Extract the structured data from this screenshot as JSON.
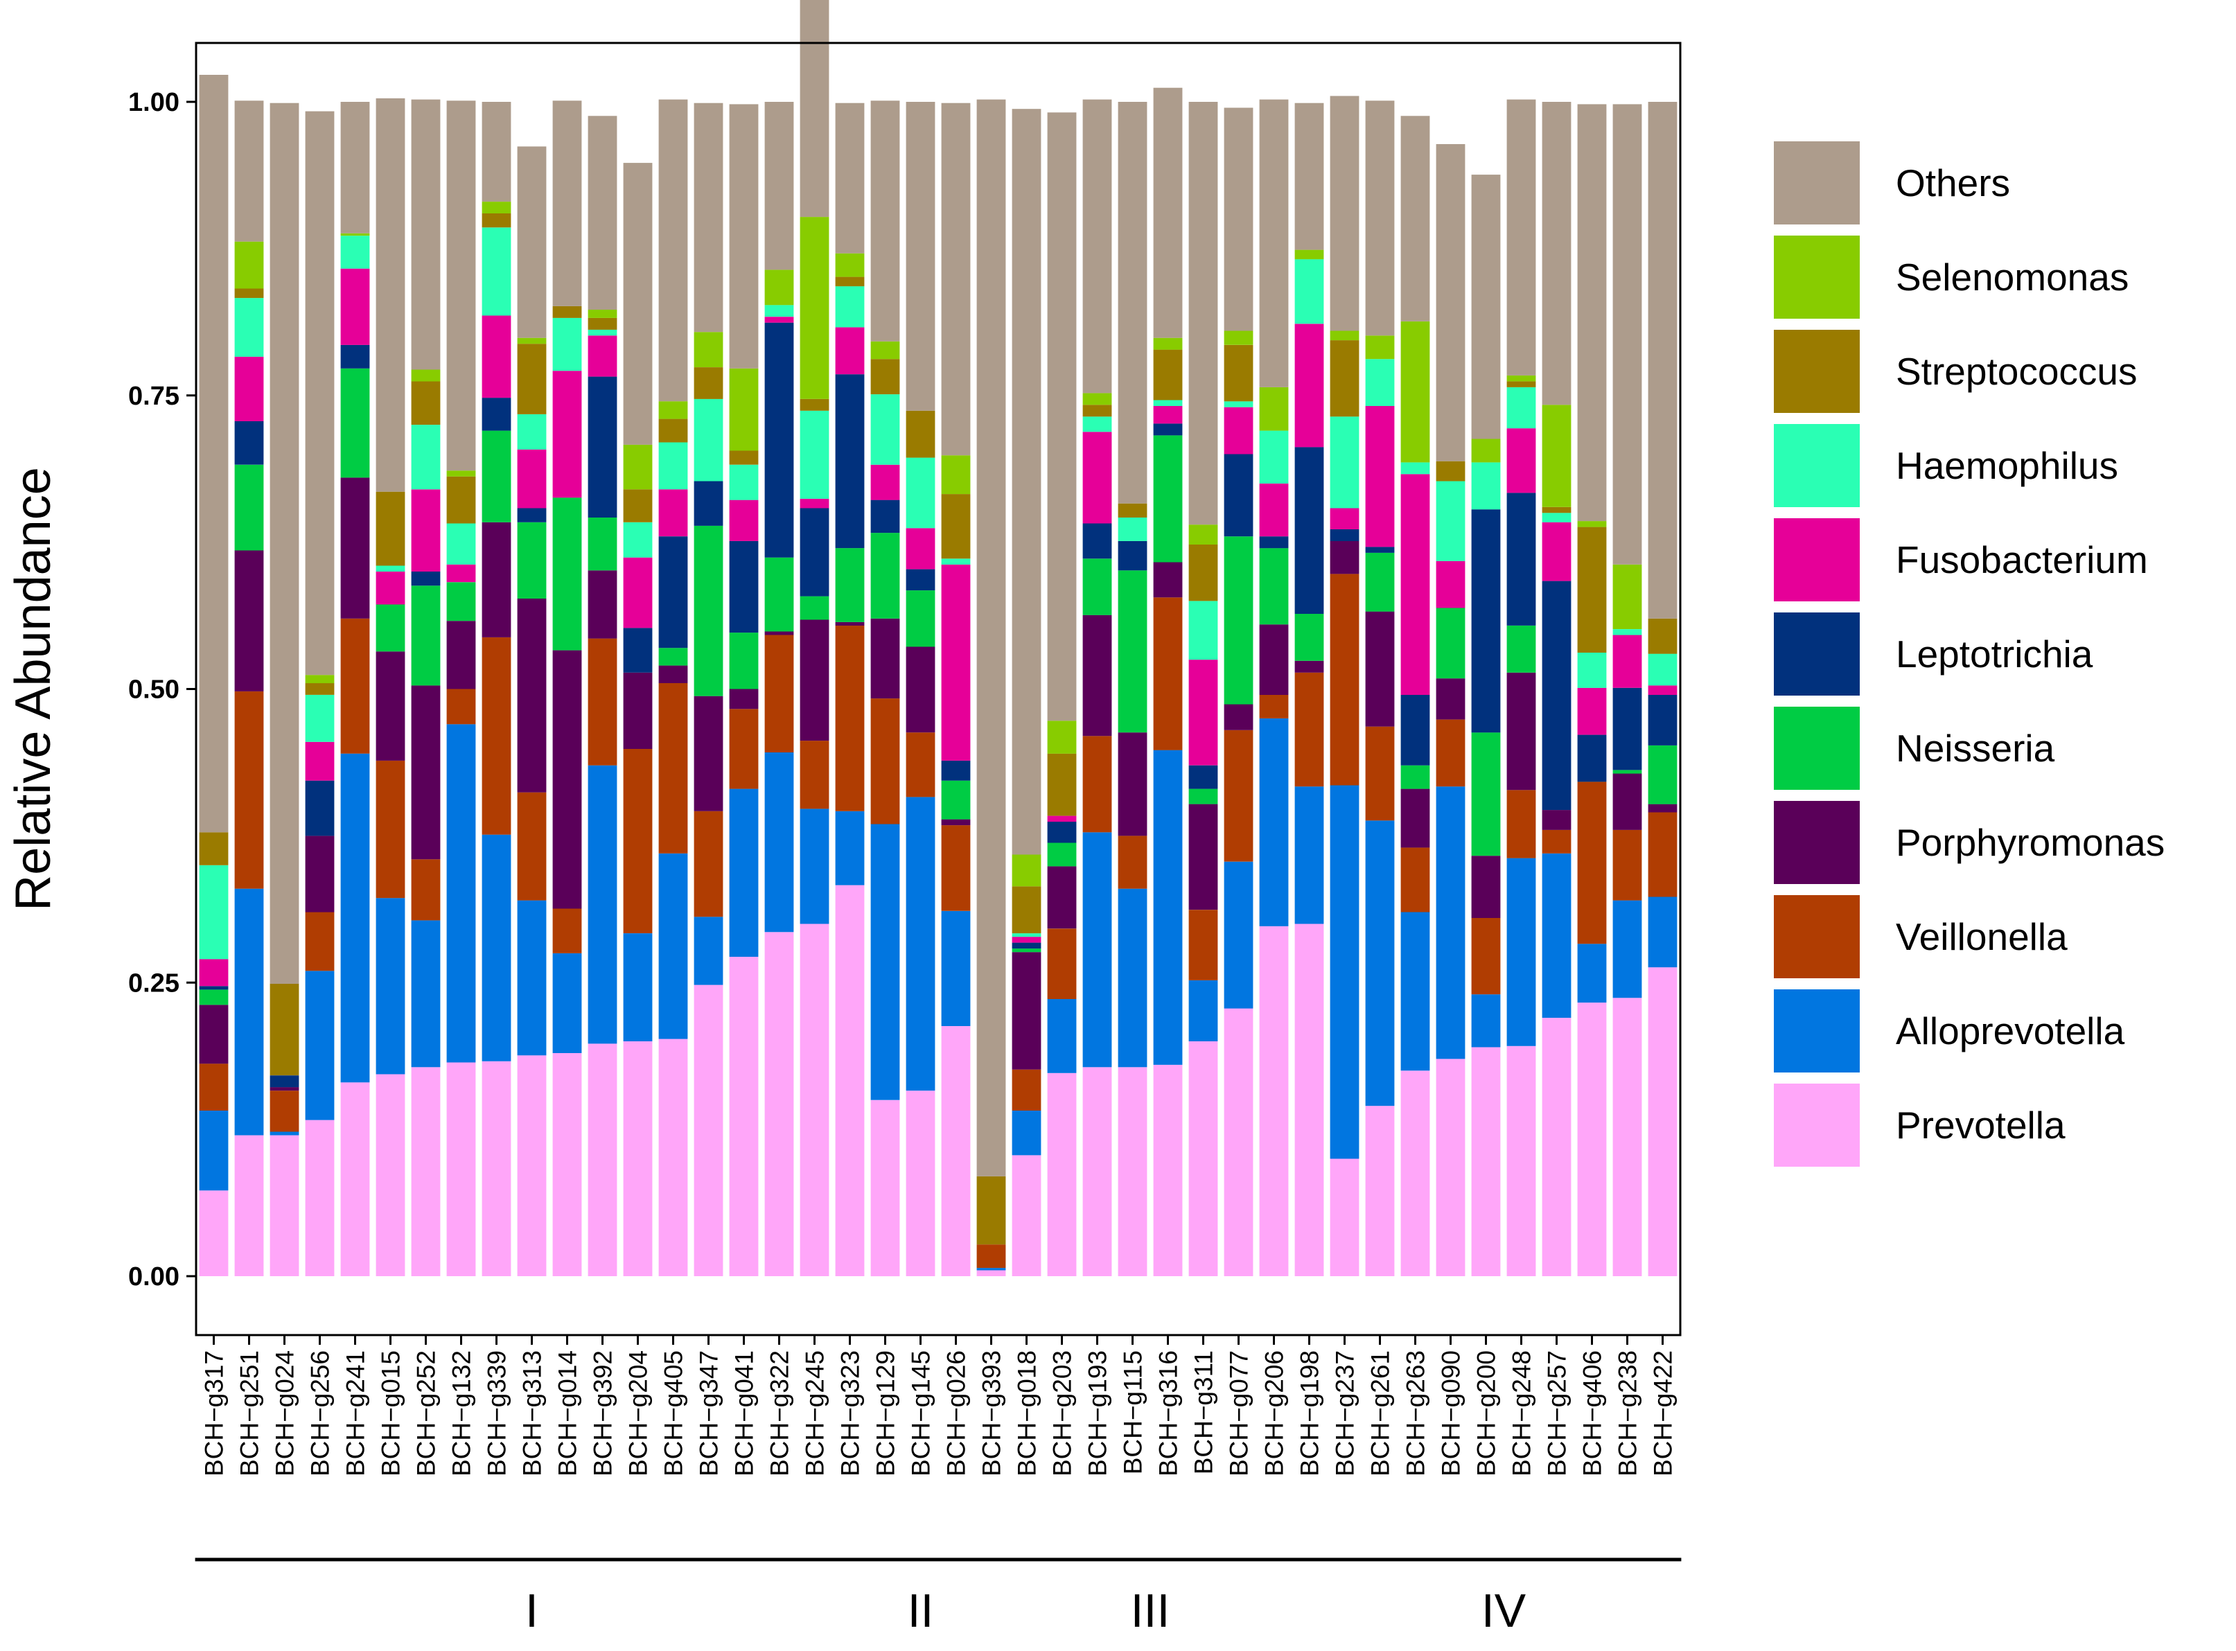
{
  "chart_data": {
    "type": "bar",
    "stacked": true,
    "ylabel": "Relative Abundance",
    "ylim": [
      0,
      1.05
    ],
    "yticks": [
      "0.00",
      "0.25",
      "0.50",
      "0.75",
      "1.00"
    ],
    "grid": false,
    "legend_position": "right",
    "categories": [
      "BCH−g317",
      "BCH−g251",
      "BCH−g024",
      "BCH−g256",
      "BCH−g241",
      "BCH−g015",
      "BCH−g252",
      "BCH−g132",
      "BCH−g339",
      "BCH−g313",
      "BCH−g014",
      "BCH−g392",
      "BCH−g204",
      "BCH−g405",
      "BCH−g347",
      "BCH−g041",
      "BCH−g322",
      "BCH−g245",
      "BCH−g323",
      "BCH−g129",
      "BCH−g145",
      "BCH−g026",
      "BCH−g393",
      "BCH−g018",
      "BCH−g203",
      "BCH−g193",
      "BCH−g115",
      "BCH−g316",
      "BCH−g311",
      "BCH−g077",
      "BCH−g206",
      "BCH−g198",
      "BCH−g237",
      "BCH−g261",
      "BCH−g263",
      "BCH−g090",
      "BCH−g200",
      "BCH−g248",
      "BCH−g257",
      "BCH−g406",
      "BCH−g238",
      "BCH−g422"
    ],
    "groups": [
      {
        "label": "I",
        "start": 0,
        "end": 18
      },
      {
        "label": "II",
        "start": 19,
        "end": 21
      },
      {
        "label": "III",
        "start": 22,
        "end": 31
      },
      {
        "label": "IV",
        "start": 32,
        "end": 41
      }
    ],
    "series": [
      {
        "name": "Prevotella",
        "color": "#FFA6F9",
        "values": [
          0.073,
          0.12,
          0.12,
          0.133,
          0.165,
          0.172,
          0.178,
          0.182,
          0.183,
          0.188,
          0.19,
          0.198,
          0.2,
          0.202,
          0.248,
          0.272,
          0.293,
          0.3,
          0.333,
          0.15,
          0.158,
          0.213,
          0.005,
          0.103,
          0.173,
          0.178,
          0.178,
          0.18,
          0.2,
          0.228,
          0.298,
          0.3,
          0.1,
          0.145,
          0.175,
          0.185,
          0.195,
          0.196,
          0.22,
          0.233,
          0.237,
          0.263
        ]
      },
      {
        "name": "Alloprevotella",
        "color": "#0176E0",
        "values": [
          0.068,
          0.21,
          0.003,
          0.127,
          0.28,
          0.15,
          0.125,
          0.288,
          0.193,
          0.132,
          0.085,
          0.237,
          0.092,
          0.158,
          0.058,
          0.143,
          0.153,
          0.098,
          0.063,
          0.235,
          0.25,
          0.098,
          0.002,
          0.038,
          0.063,
          0.2,
          0.152,
          0.268,
          0.052,
          0.125,
          0.177,
          0.117,
          0.318,
          0.243,
          0.135,
          0.232,
          0.045,
          0.16,
          0.14,
          0.05,
          0.083,
          0.06
        ]
      },
      {
        "name": "Veillonella",
        "color": "#B03D02",
        "values": [
          0.04,
          0.168,
          0.035,
          0.05,
          0.115,
          0.117,
          0.052,
          0.03,
          0.168,
          0.092,
          0.038,
          0.108,
          0.157,
          0.145,
          0.09,
          0.068,
          0.1,
          0.058,
          0.158,
          0.107,
          0.055,
          0.073,
          0.02,
          0.035,
          0.06,
          0.082,
          0.045,
          0.13,
          0.06,
          0.112,
          0.02,
          0.097,
          0.18,
          0.08,
          0.055,
          0.057,
          0.065,
          0.058,
          0.02,
          0.138,
          0.06,
          0.072
        ]
      },
      {
        "name": "Porphyromonas",
        "color": "#5A0059",
        "values": [
          0.05,
          0.12,
          0.003,
          0.065,
          0.12,
          0.093,
          0.148,
          0.058,
          0.098,
          0.165,
          0.22,
          0.058,
          0.065,
          0.015,
          0.098,
          0.017,
          0.003,
          0.103,
          0.003,
          0.068,
          0.073,
          0.005,
          0.0,
          0.1,
          0.053,
          0.103,
          0.088,
          0.03,
          0.09,
          0.022,
          0.06,
          0.01,
          0.028,
          0.098,
          0.05,
          0.035,
          0.053,
          0.1,
          0.017,
          0.0,
          0.048,
          0.007
        ]
      },
      {
        "name": "Neisseria",
        "color": "#00CC44",
        "values": [
          0.013,
          0.073,
          0.0,
          0.0,
          0.093,
          0.04,
          0.085,
          0.033,
          0.078,
          0.065,
          0.13,
          0.045,
          0.0,
          0.015,
          0.145,
          0.048,
          0.063,
          0.02,
          0.063,
          0.073,
          0.048,
          0.033,
          0.0,
          0.003,
          0.02,
          0.048,
          0.138,
          0.108,
          0.013,
          0.143,
          0.065,
          0.04,
          0.0,
          0.05,
          0.02,
          0.06,
          0.105,
          0.04,
          0.0,
          0.0,
          0.003,
          0.05
        ]
      },
      {
        "name": "Leptotrichia",
        "color": "#01317D",
        "values": [
          0.003,
          0.037,
          0.01,
          0.047,
          0.02,
          0.0,
          0.012,
          0.0,
          0.028,
          0.012,
          0.0,
          0.12,
          0.038,
          0.095,
          0.038,
          0.078,
          0.2,
          0.075,
          0.148,
          0.028,
          0.018,
          0.017,
          0.0,
          0.005,
          0.018,
          0.03,
          0.025,
          0.01,
          0.02,
          0.07,
          0.01,
          0.142,
          0.01,
          0.005,
          0.06,
          0.0,
          0.19,
          0.113,
          0.195,
          0.04,
          0.07,
          0.043
        ]
      },
      {
        "name": "Fusobacterium",
        "color": "#E60098",
        "values": [
          0.023,
          0.055,
          0.0,
          0.033,
          0.065,
          0.028,
          0.07,
          0.015,
          0.07,
          0.05,
          0.108,
          0.035,
          0.06,
          0.04,
          0.0,
          0.035,
          0.005,
          0.008,
          0.04,
          0.03,
          0.035,
          0.167,
          0.0,
          0.005,
          0.005,
          0.078,
          0.0,
          0.015,
          0.09,
          0.04,
          0.045,
          0.105,
          0.018,
          0.12,
          0.188,
          0.04,
          0.0,
          0.055,
          0.05,
          0.04,
          0.045,
          0.008
        ]
      },
      {
        "name": "Haemophilus",
        "color": "#2AFFB4",
        "values": [
          0.08,
          0.05,
          0.0,
          0.04,
          0.028,
          0.005,
          0.055,
          0.035,
          0.075,
          0.03,
          0.045,
          0.005,
          0.03,
          0.04,
          0.07,
          0.03,
          0.01,
          0.075,
          0.035,
          0.06,
          0.06,
          0.005,
          0.0,
          0.003,
          0.0,
          0.013,
          0.02,
          0.005,
          0.05,
          0.005,
          0.045,
          0.055,
          0.078,
          0.04,
          0.01,
          0.068,
          0.04,
          0.035,
          0.008,
          0.03,
          0.005,
          0.027
        ]
      },
      {
        "name": "Streptococcus",
        "color": "#9A7B00",
        "values": [
          0.028,
          0.008,
          0.078,
          0.01,
          0.0,
          0.063,
          0.037,
          0.04,
          0.012,
          0.06,
          0.01,
          0.01,
          0.028,
          0.02,
          0.027,
          0.012,
          0.0,
          0.01,
          0.008,
          0.03,
          0.04,
          0.055,
          0.058,
          0.04,
          0.053,
          0.01,
          0.012,
          0.043,
          0.048,
          0.048,
          0.0,
          0.0,
          0.065,
          0.0,
          0.0,
          0.017,
          0.0,
          0.005,
          0.005,
          0.107,
          0.0,
          0.03
        ]
      },
      {
        "name": "Selenomonas",
        "color": "#88CC00",
        "values": [
          0.0,
          0.04,
          0.0,
          0.007,
          0.002,
          0.0,
          0.01,
          0.005,
          0.01,
          0.005,
          0.0,
          0.007,
          0.038,
          0.015,
          0.03,
          0.07,
          0.03,
          0.155,
          0.02,
          0.015,
          0.0,
          0.033,
          0.0,
          0.027,
          0.028,
          0.01,
          0.0,
          0.01,
          0.017,
          0.012,
          0.037,
          0.008,
          0.008,
          0.02,
          0.12,
          0.0,
          0.02,
          0.005,
          0.087,
          0.005,
          0.055,
          0.0
        ]
      },
      {
        "name": "Others",
        "color": "#AD9C8C",
        "values": [
          0.645,
          0.12,
          0.75,
          0.48,
          0.112,
          0.335,
          0.23,
          0.315,
          0.085,
          0.163,
          0.175,
          0.165,
          0.24,
          0.257,
          0.195,
          0.225,
          0.143,
          0.195,
          0.128,
          0.205,
          0.263,
          0.3,
          0.917,
          0.635,
          0.518,
          0.25,
          0.342,
          0.213,
          0.36,
          0.19,
          0.245,
          0.125,
          0.2,
          0.2,
          0.175,
          0.27,
          0.225,
          0.235,
          0.258,
          0.355,
          0.392,
          0.44
        ]
      }
    ]
  }
}
